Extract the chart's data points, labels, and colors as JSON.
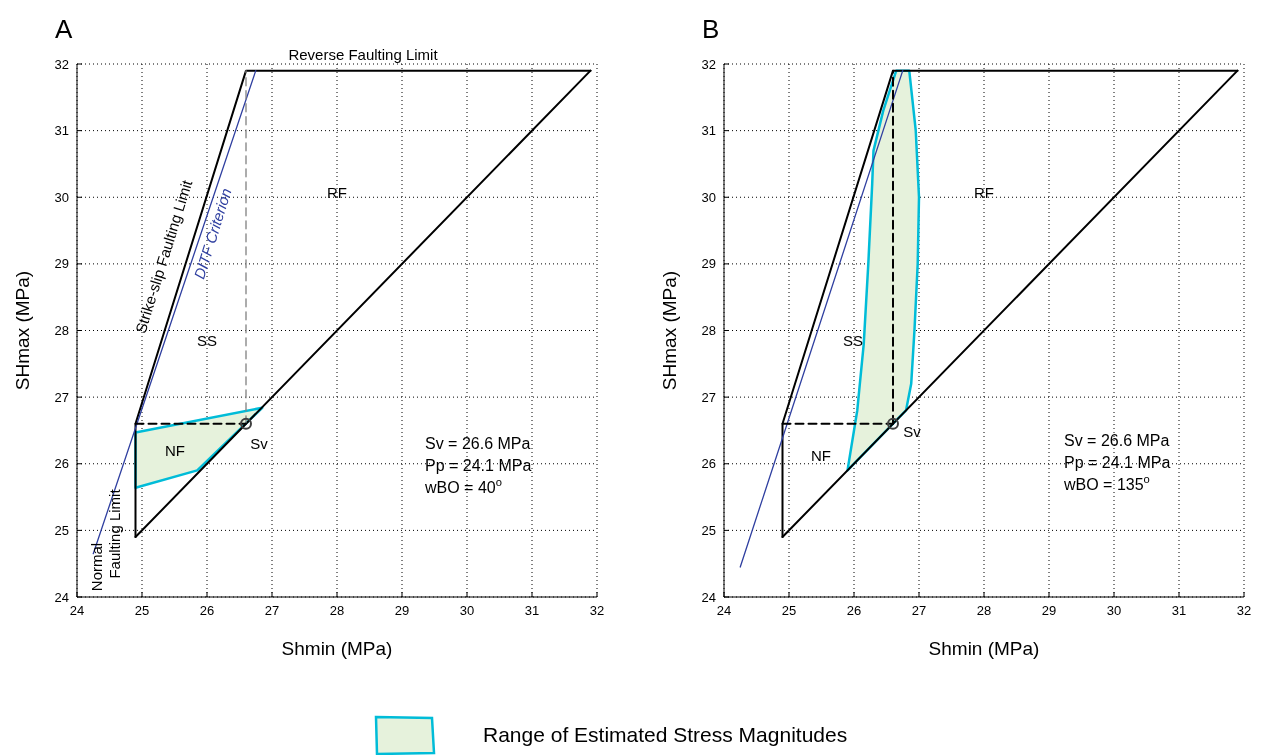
{
  "chart_data": [
    {
      "type": "line",
      "title": "A",
      "xlabel": "Shmin (MPa)",
      "ylabel": "SHmax (MPa)",
      "xlim": [
        24,
        32
      ],
      "ylim": [
        24,
        32
      ],
      "xticks": [
        24,
        25,
        26,
        27,
        28,
        29,
        30,
        31,
        32
      ],
      "yticks": [
        24,
        25,
        26,
        27,
        28,
        29,
        30,
        31,
        32
      ],
      "grid": true,
      "legend": "bottom",
      "series": [
        {
          "type": "area",
          "name": "Range of Estimated Stress Magnitudes",
          "color": "#00bcd8",
          "x": [
            24.9,
            25.85,
            26.85,
            24.9
          ],
          "values": [
            25.64,
            25.9,
            26.84,
            26.47
          ]
        },
        {
          "type": "line",
          "color": "#000000",
          "x": [
            24.9,
            24.9,
            26.6,
            31.9
          ],
          "values": [
            24.9,
            26.6,
            31.9,
            31.9
          ]
        },
        {
          "type": "line",
          "color": "#000000",
          "x": [
            24.9,
            31.9
          ],
          "values": [
            24.9,
            31.9
          ]
        },
        {
          "type": "line",
          "color": "#2f3fa0",
          "x": [
            24.25,
            26.75
          ],
          "values": [
            24.65,
            31.9
          ]
        },
        {
          "type": "line",
          "color": "#808080",
          "line_style": "dashed",
          "x": [
            26.6,
            26.6
          ],
          "values": [
            26.6,
            31.9
          ]
        },
        {
          "type": "line",
          "color": "#000000",
          "line_style": "dashed",
          "x": [
            24.9,
            26.6
          ],
          "values": [
            26.6,
            26.6
          ]
        },
        {
          "type": "scatter",
          "marker": "circle",
          "color": "#404040",
          "x": [
            26.6
          ],
          "values": [
            26.6
          ]
        }
      ],
      "annotations": [
        "Reverse Faulting Limit",
        "Strike-slip Faulting Limit",
        "DITF Criterion",
        "RF",
        "SS",
        "NF",
        "Sv",
        "Normal",
        "Faulting Limit",
        "Sv = 26.6 MPa",
        "Pp = 24.1 MPa",
        "wBO = 40$^{o}$"
      ]
    },
    {
      "type": "line",
      "title": "B",
      "xlabel": "Shmin (MPa)",
      "ylabel": "SHmax (MPa)",
      "xlim": [
        24,
        32
      ],
      "ylim": [
        24,
        32
      ],
      "xticks": [
        24,
        25,
        26,
        27,
        28,
        29,
        30,
        31,
        32
      ],
      "yticks": [
        24,
        25,
        26,
        27,
        28,
        29,
        30,
        31,
        32
      ],
      "grid": true,
      "series": [
        {
          "type": "area",
          "color": "#00bcd8",
          "x": [
            25.9,
            26.05,
            26.15,
            26.22,
            26.28,
            26.3,
            26.45,
            26.65,
            26.85,
            26.95,
            27.0,
            26.98,
            26.93,
            26.88,
            26.8
          ],
          "values": [
            25.9,
            26.8,
            27.8,
            29.0,
            30.2,
            30.7,
            31.3,
            31.9,
            31.9,
            31.0,
            30.0,
            29.0,
            28.0,
            27.2,
            26.8
          ]
        },
        {
          "type": "line",
          "color": "#000000",
          "x": [
            24.9,
            24.9,
            26.6,
            31.9
          ],
          "values": [
            24.9,
            26.6,
            31.9,
            31.9
          ]
        },
        {
          "type": "line",
          "color": "#000000",
          "x": [
            24.9,
            31.9
          ],
          "values": [
            24.9,
            31.9
          ]
        },
        {
          "type": "line",
          "color": "#2f3fa0",
          "x": [
            24.25,
            26.75
          ],
          "values": [
            24.45,
            31.9
          ]
        },
        {
          "type": "line",
          "color": "#000000",
          "line_style": "dashed",
          "x": [
            26.6,
            26.6
          ],
          "values": [
            26.6,
            31.9
          ]
        },
        {
          "type": "line",
          "color": "#000000",
          "line_style": "dashed",
          "x": [
            24.9,
            26.6
          ],
          "values": [
            26.6,
            26.6
          ]
        },
        {
          "type": "scatter",
          "marker": "circle",
          "color": "#404040",
          "x": [
            26.6
          ],
          "values": [
            26.6
          ]
        }
      ],
      "annotations": [
        "RF",
        "SS",
        "NF",
        "Sv",
        "Sv = 26.6 MPa",
        "Pp = 24.1 MPa",
        "wBO = 135$^{o}$"
      ]
    }
  ]
}
